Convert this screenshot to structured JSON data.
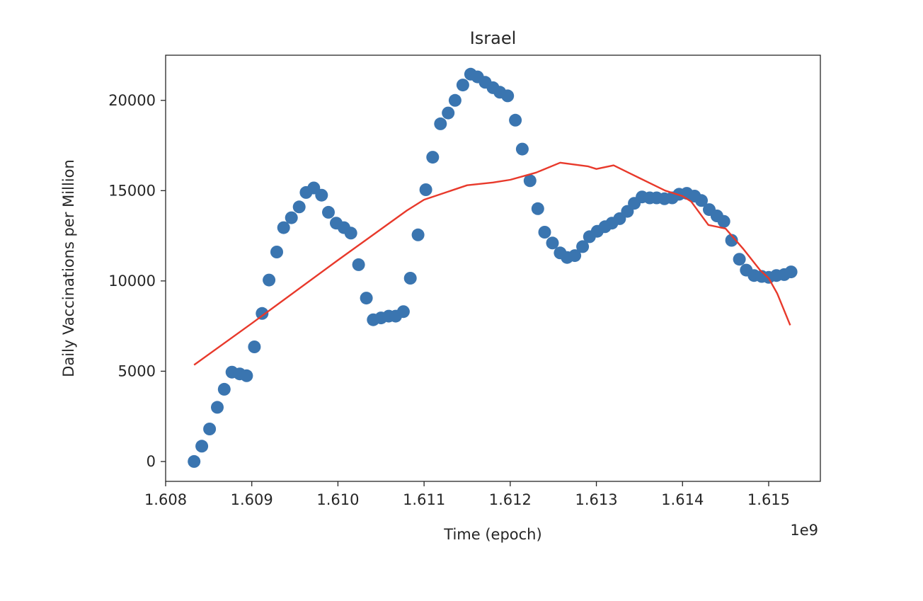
{
  "chart_data": {
    "type": "scatter",
    "title": "Israel",
    "xlabel": "Time (epoch)",
    "ylabel": "Daily Vaccinations per Million",
    "x_offset_label": "1e9",
    "xlim": [
      1.608,
      1.6156
    ],
    "ylim": [
      -1100,
      22500
    ],
    "x_ticks": [
      1.608,
      1.609,
      1.61,
      1.611,
      1.612,
      1.613,
      1.614,
      1.615
    ],
    "x_tick_labels": [
      "1.608",
      "1.609",
      "1.610",
      "1.611",
      "1.612",
      "1.613",
      "1.614",
      "1.615"
    ],
    "y_ticks": [
      0,
      5000,
      10000,
      15000,
      20000
    ],
    "y_tick_labels": [
      "0",
      "5000",
      "10000",
      "15000",
      "20000"
    ],
    "grid": false,
    "colors": {
      "scatter": "#3a75b0",
      "line": "#e8392b"
    },
    "series": [
      {
        "type": "scatter",
        "x": [
          1.60833,
          1.60842,
          1.60851,
          1.6086,
          1.60868,
          1.60877,
          1.60886,
          1.60894,
          1.60903,
          1.60912,
          1.6092,
          1.60929,
          1.60937,
          1.60946,
          1.60955,
          1.60963,
          1.60972,
          1.60981,
          1.60989,
          1.60998,
          1.61007,
          1.61015,
          1.61024,
          1.61033,
          1.61041,
          1.6105,
          1.61059,
          1.61067,
          1.61076,
          1.61084,
          1.61093,
          1.61102,
          1.6111,
          1.61119,
          1.61128,
          1.61136,
          1.61145,
          1.61154,
          1.61162,
          1.61171,
          1.6118,
          1.61188,
          1.61197,
          1.61206,
          1.61214,
          1.61223,
          1.61232,
          1.6124,
          1.61249,
          1.61258,
          1.61266,
          1.61275,
          1.61284,
          1.61292,
          1.61301,
          1.6131,
          1.61318,
          1.61327,
          1.61336,
          1.61344,
          1.61353,
          1.61362,
          1.6137,
          1.61379,
          1.61388,
          1.61396,
          1.61405,
          1.61414,
          1.61422,
          1.61431,
          1.6144,
          1.61448,
          1.61457,
          1.61466,
          1.61474,
          1.61483,
          1.61492,
          1.615,
          1.61509,
          1.61518,
          1.61526
        ],
        "y": [
          0,
          850,
          1800,
          3000,
          4000,
          4950,
          4850,
          4750,
          6350,
          8200,
          10050,
          11600,
          12950,
          13500,
          14100,
          14900,
          15150,
          14750,
          13800,
          13200,
          12950,
          12650,
          10900,
          9050,
          7850,
          7950,
          8050,
          8050,
          8300,
          10150,
          12550,
          15050,
          16850,
          18700,
          19300,
          20000,
          20850,
          21450,
          21300,
          21000,
          20700,
          20450,
          20250,
          18900,
          17300,
          15550,
          14000,
          12700,
          12100,
          11550,
          11300,
          11400,
          11900,
          12450,
          12750,
          13000,
          13200,
          13450,
          13850,
          14300,
          14650,
          14600,
          14600,
          14550,
          14600,
          14800,
          14850,
          14700,
          14450,
          13950,
          13600,
          13300,
          12250,
          11200,
          10600,
          10300,
          10250,
          10200,
          10300,
          10350,
          10500
        ]
      },
      {
        "type": "line",
        "x": [
          1.60833,
          1.609,
          1.61,
          1.6108,
          1.611,
          1.6115,
          1.6118,
          1.612,
          1.6123,
          1.61258,
          1.6129,
          1.613,
          1.6132,
          1.6135,
          1.6138,
          1.614,
          1.6141,
          1.6143,
          1.6145,
          1.6147,
          1.6149,
          1.615,
          1.6151,
          1.61525
        ],
        "y": [
          5350,
          7650,
          11150,
          13900,
          14500,
          15300,
          15450,
          15600,
          16000,
          16550,
          16350,
          16200,
          16400,
          15700,
          15000,
          14700,
          14400,
          13100,
          12900,
          11800,
          10600,
          10150,
          9300,
          7550
        ]
      }
    ]
  }
}
